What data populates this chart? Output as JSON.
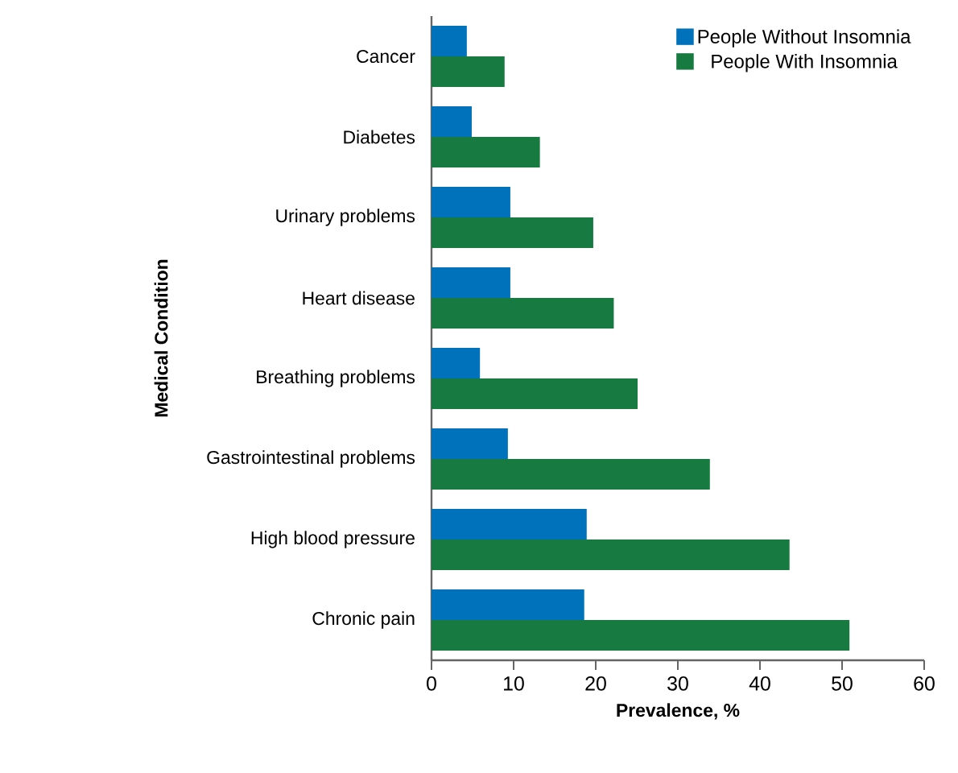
{
  "chart_data": {
    "type": "bar",
    "orientation": "horizontal",
    "xlabel": "Prevalence, %",
    "ylabel": "Medical Condition",
    "categories": [
      "Cancer",
      "Diabetes",
      "Urinary problems",
      "Heart disease",
      "Breathing problems",
      "Gastrointestinal problems",
      "High blood pressure",
      "Chronic pain"
    ],
    "series": [
      {
        "name": "People Without Insomnia",
        "color": "#0072bc",
        "values": [
          4.3,
          4.9,
          9.6,
          9.6,
          5.9,
          9.3,
          18.9,
          18.6
        ]
      },
      {
        "name": "People With Insomnia",
        "color": "#177a40",
        "values": [
          8.9,
          13.2,
          19.7,
          22.2,
          25.1,
          33.9,
          43.6,
          50.9
        ]
      }
    ],
    "xlim": [
      0,
      60
    ],
    "xticks": [
      0,
      10,
      20,
      30,
      40,
      50,
      60
    ],
    "grid": false,
    "legend": "top right"
  }
}
